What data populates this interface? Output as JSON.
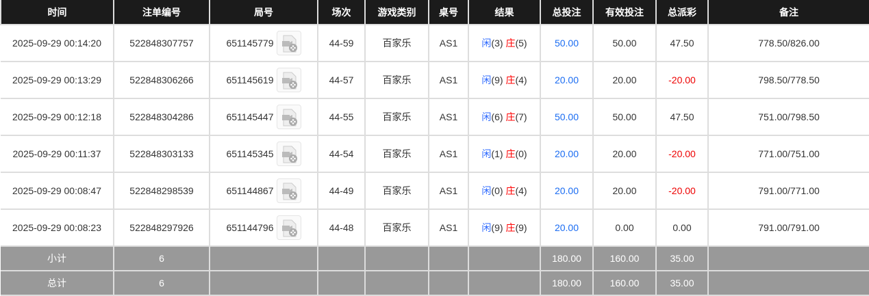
{
  "headers": [
    "时间",
    "注单编号",
    "局号",
    "场次",
    "游戏类别",
    "桌号",
    "结果",
    "总投注",
    "有效投注",
    "总派彩",
    "备注"
  ],
  "rows": [
    {
      "time": "2025-09-29 00:14:20",
      "bet_id": "522848307757",
      "round": "651145779",
      "session": "44-59",
      "game": "百家乐",
      "table": "AS1",
      "player_label": "闲",
      "player": "(3)",
      "banker_label": "庄",
      "banker": "(5)",
      "total_bet": "50.00",
      "valid_bet": "50.00",
      "payout": "47.50",
      "payout_negative": false,
      "note": "778.50/826.00"
    },
    {
      "time": "2025-09-29 00:13:29",
      "bet_id": "522848306266",
      "round": "651145619",
      "session": "44-57",
      "game": "百家乐",
      "table": "AS1",
      "player_label": "闲",
      "player": "(9)",
      "banker_label": "庄",
      "banker": "(4)",
      "total_bet": "20.00",
      "valid_bet": "20.00",
      "payout": "-20.00",
      "payout_negative": true,
      "note": "798.50/778.50"
    },
    {
      "time": "2025-09-29 00:12:18",
      "bet_id": "522848304286",
      "round": "651145447",
      "session": "44-55",
      "game": "百家乐",
      "table": "AS1",
      "player_label": "闲",
      "player": "(6)",
      "banker_label": "庄",
      "banker": "(7)",
      "total_bet": "50.00",
      "valid_bet": "50.00",
      "payout": "47.50",
      "payout_negative": false,
      "note": "751.00/798.50"
    },
    {
      "time": "2025-09-29 00:11:37",
      "bet_id": "522848303133",
      "round": "651145345",
      "session": "44-54",
      "game": "百家乐",
      "table": "AS1",
      "player_label": "闲",
      "player": "(1)",
      "banker_label": "庄",
      "banker": "(0)",
      "total_bet": "20.00",
      "valid_bet": "20.00",
      "payout": "-20.00",
      "payout_negative": true,
      "note": "771.00/751.00"
    },
    {
      "time": "2025-09-29 00:08:47",
      "bet_id": "522848298539",
      "round": "651144867",
      "session": "44-49",
      "game": "百家乐",
      "table": "AS1",
      "player_label": "闲",
      "player": "(0)",
      "banker_label": "庄",
      "banker": "(4)",
      "total_bet": "20.00",
      "valid_bet": "20.00",
      "payout": "-20.00",
      "payout_negative": true,
      "note": "791.00/771.00"
    },
    {
      "time": "2025-09-29 00:08:23",
      "bet_id": "522848297926",
      "round": "651144796",
      "session": "44-48",
      "game": "百家乐",
      "table": "AS1",
      "player_label": "闲",
      "player": "(9)",
      "banker_label": "庄",
      "banker": "(9)",
      "total_bet": "20.00",
      "valid_bet": "0.00",
      "payout": "0.00",
      "payout_negative": false,
      "note": "791.00/791.00"
    }
  ],
  "subtotal": {
    "label": "小计",
    "count": "6",
    "total_bet": "180.00",
    "valid_bet": "160.00",
    "payout": "35.00"
  },
  "total": {
    "label": "总计",
    "count": "6",
    "total_bet": "180.00",
    "valid_bet": "160.00",
    "payout": "35.00"
  },
  "colors": {
    "header_bg": "#1b1b1b",
    "sum_bg": "#999999",
    "blue": "#1a6cf2",
    "red": "#ee0000"
  },
  "icons": {
    "replay": "video-replay-icon"
  }
}
